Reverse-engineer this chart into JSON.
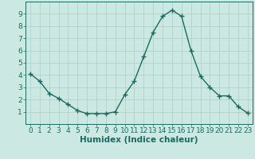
{
  "x": [
    0,
    1,
    2,
    3,
    4,
    5,
    6,
    7,
    8,
    9,
    10,
    11,
    12,
    13,
    14,
    15,
    16,
    17,
    18,
    19,
    20,
    21,
    22,
    23
  ],
  "y": [
    4.1,
    3.5,
    2.5,
    2.1,
    1.6,
    1.1,
    0.85,
    0.85,
    0.85,
    1.0,
    2.4,
    3.5,
    5.5,
    7.5,
    8.8,
    9.3,
    8.8,
    6.0,
    3.9,
    3.0,
    2.3,
    2.3,
    1.4,
    0.9
  ],
  "line_color": "#1a6b5e",
  "marker": "+",
  "markersize": 4,
  "markeredgewidth": 1.0,
  "linewidth": 1.0,
  "xlabel": "Humidex (Indice chaleur)",
  "xlabel_fontsize": 7.5,
  "xlabel_weight": "bold",
  "ylim": [
    0,
    10
  ],
  "xlim": [
    -0.5,
    23.5
  ],
  "yticks": [
    1,
    2,
    3,
    4,
    5,
    6,
    7,
    8,
    9
  ],
  "xticks": [
    0,
    1,
    2,
    3,
    4,
    5,
    6,
    7,
    8,
    9,
    10,
    11,
    12,
    13,
    14,
    15,
    16,
    17,
    18,
    19,
    20,
    21,
    22,
    23
  ],
  "grid_color": "#aacfc8",
  "grid_linewidth": 0.5,
  "background_color": "#cce8e2",
  "tick_fontsize": 6.5,
  "spine_color": "#1a6b5e"
}
